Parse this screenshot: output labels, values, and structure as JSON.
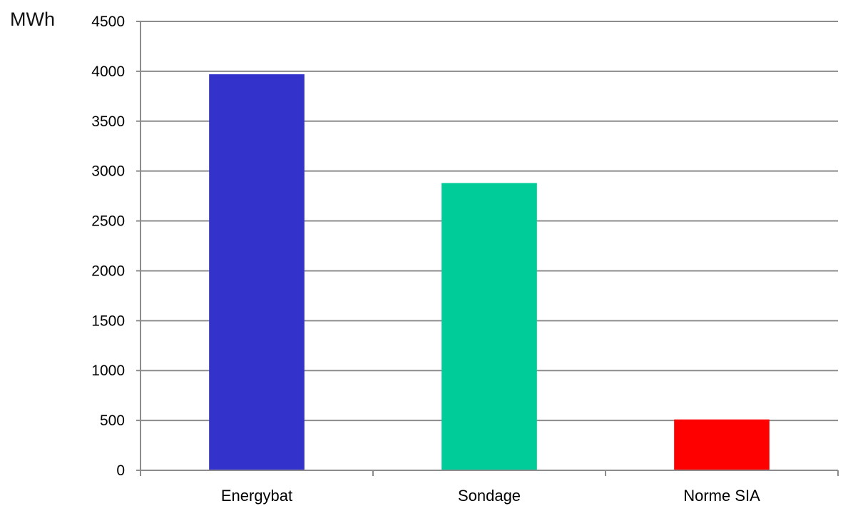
{
  "chart_data": {
    "type": "bar",
    "title": "",
    "xlabel": "",
    "ylabel": "MWh",
    "ylim": [
      0,
      4500
    ],
    "y_ticks": [
      "0",
      "500",
      "1000",
      "1500",
      "2000",
      "2500",
      "3000",
      "3500",
      "4000",
      "4500"
    ],
    "grid": true,
    "legend": "none",
    "categories": [
      "Energybat",
      "Sondage",
      "Norme SIA"
    ],
    "values": [
      3970,
      2880,
      510
    ],
    "colors": [
      "#3333cc",
      "#00cc99",
      "#ff0000"
    ]
  }
}
